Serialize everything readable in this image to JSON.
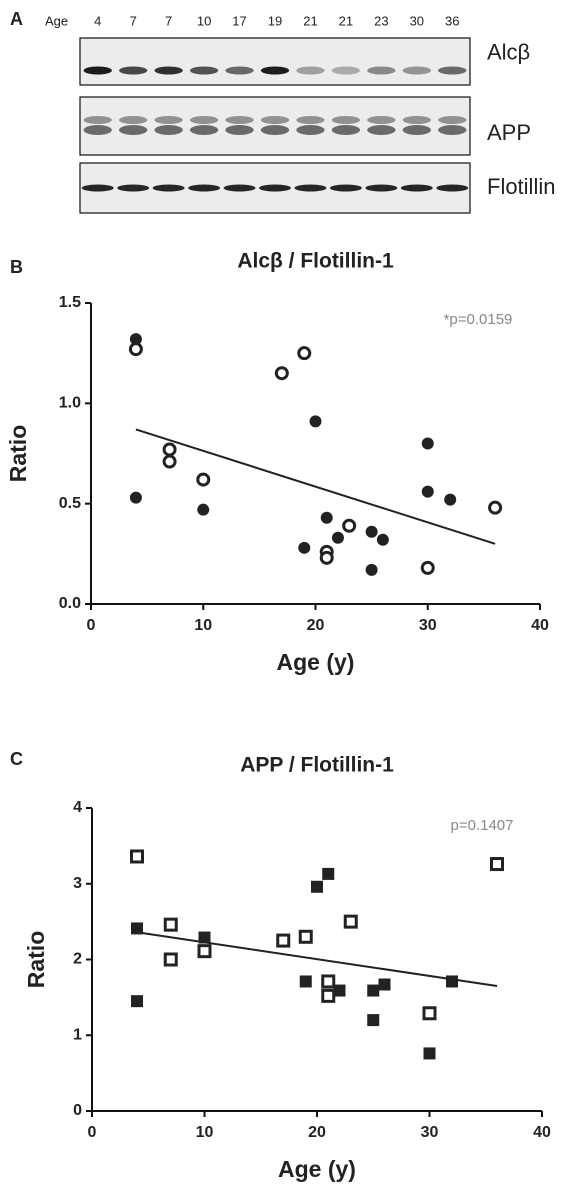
{
  "blot": {
    "panel_label": "A",
    "age_label": "Age",
    "ages": [
      "4",
      "7",
      "7",
      "10",
      "17",
      "19",
      "21",
      "21",
      "23",
      "30",
      "36"
    ],
    "bands": [
      "Alcβ",
      "APP",
      "Flotillin"
    ]
  },
  "chart_data": [
    {
      "type": "scatter",
      "panel_label": "B",
      "title": "Alcβ / Flotillin-1",
      "annotation": "*p=0.0159",
      "xlabel": "Age (y)",
      "ylabel": "Ratio",
      "xlim": [
        0,
        40
      ],
      "xticks": [
        0,
        10,
        20,
        30,
        40
      ],
      "ylim": [
        0,
        1.5
      ],
      "yticks": [
        {
          "value": 0,
          "label": "0.0"
        },
        {
          "value": 0.5,
          "label": "0.5"
        },
        {
          "value": 1,
          "label": "1.0"
        },
        {
          "value": 1.5,
          "label": "1.5"
        }
      ],
      "grid": false,
      "series": [
        {
          "marker": "circle",
          "filled": true,
          "color": "#222222",
          "x": [
            4,
            4,
            10,
            20,
            19,
            21,
            22,
            25,
            25,
            26,
            30,
            30,
            32
          ],
          "values": [
            1.32,
            0.53,
            0.47,
            0.91,
            0.28,
            0.43,
            0.33,
            0.36,
            0.17,
            0.32,
            0.8,
            0.56,
            0.52
          ]
        },
        {
          "marker": "circle",
          "filled": false,
          "color": "#222222",
          "x": [
            4,
            7,
            7,
            10,
            17,
            19,
            21,
            21,
            23,
            30,
            36
          ],
          "values": [
            1.27,
            0.77,
            0.71,
            0.62,
            1.15,
            1.25,
            0.26,
            0.23,
            0.39,
            0.18,
            0.48
          ]
        },
        {
          "marker": "line",
          "color": "#222222",
          "x": [
            4,
            36
          ],
          "values": [
            0.87,
            0.3
          ]
        }
      ]
    },
    {
      "type": "scatter",
      "panel_label": "C",
      "title": "APP / Flotillin-1",
      "annotation": "p=0.1407",
      "xlabel": "Age (y)",
      "ylabel": "Ratio",
      "xlim": [
        0,
        40
      ],
      "xticks": [
        0,
        10,
        20,
        30,
        40
      ],
      "ylim": [
        0,
        4
      ],
      "yticks": [
        0,
        1,
        2,
        3,
        4
      ],
      "grid": false,
      "series": [
        {
          "marker": "square",
          "filled": true,
          "color": "#222222",
          "x": [
            4,
            4,
            10,
            19,
            20,
            21,
            22,
            25,
            25,
            26,
            30,
            32
          ],
          "values": [
            2.41,
            1.45,
            2.29,
            1.71,
            2.96,
            3.13,
            1.59,
            1.59,
            1.2,
            1.67,
            0.76,
            1.71
          ]
        },
        {
          "marker": "square",
          "filled": false,
          "color": "#222222",
          "x": [
            4,
            7,
            7,
            10,
            17,
            19,
            21,
            21,
            23,
            30,
            36
          ],
          "values": [
            3.36,
            2.46,
            2.0,
            2.11,
            2.25,
            2.3,
            1.71,
            1.52,
            2.5,
            1.29,
            3.26
          ]
        },
        {
          "marker": "line",
          "color": "#222222",
          "x": [
            4,
            36
          ],
          "values": [
            2.36,
            1.65
          ]
        }
      ]
    }
  ]
}
